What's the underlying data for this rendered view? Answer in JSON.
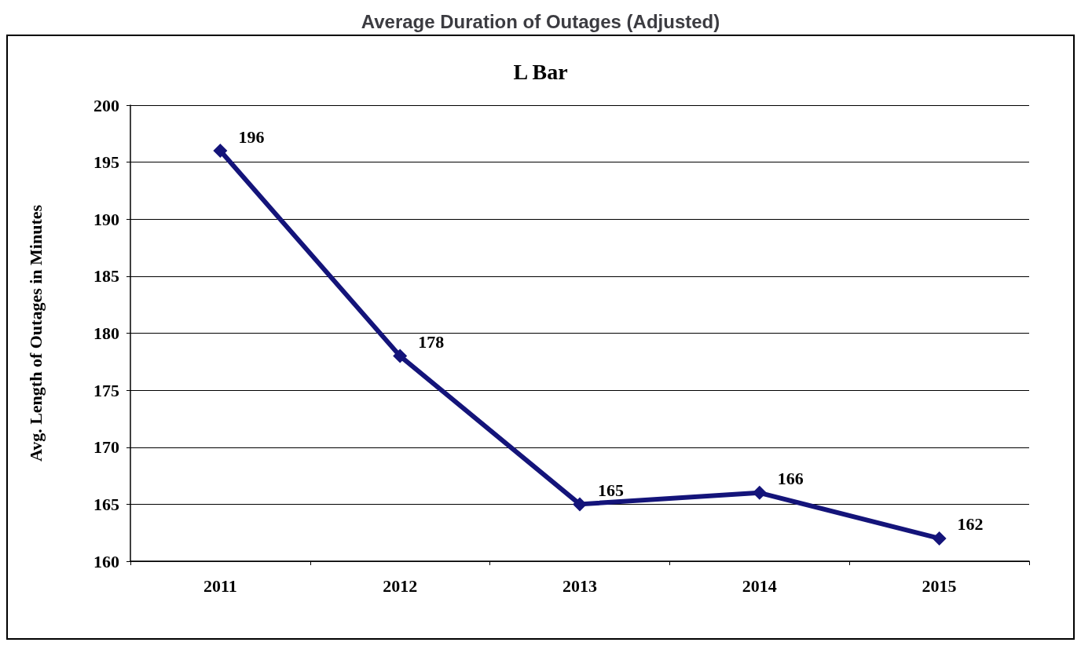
{
  "chart_data": {
    "type": "line",
    "title": "Average Duration of Outages (Adjusted)",
    "subtitle": "L Bar",
    "ylabel": "Avg. Length of Outages in Minutes",
    "categories": [
      "2011",
      "2012",
      "2013",
      "2014",
      "2015"
    ],
    "series": [
      {
        "color": "#14147a",
        "values": [
          196,
          178,
          165,
          166,
          162
        ]
      }
    ],
    "ylim": [
      160,
      200
    ],
    "yticks": [
      160,
      165,
      170,
      175,
      180,
      185,
      190,
      195,
      200
    ],
    "grid": "y",
    "marker": "diamond",
    "line_style": "solid",
    "data_labels": true
  }
}
